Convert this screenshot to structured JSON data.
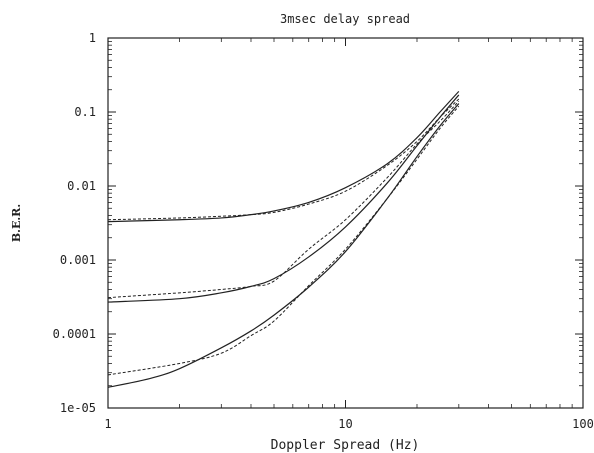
{
  "chart_data": {
    "type": "line",
    "title": "3msec delay spread",
    "xlabel": "Doppler Spread (Hz)",
    "ylabel": "B.E.R.",
    "xscale": "log",
    "yscale": "log",
    "xlim": [
      1,
      100
    ],
    "ylim": [
      1e-05,
      1
    ],
    "xticks": [
      1,
      10,
      100
    ],
    "xtick_labels": [
      "1",
      "10",
      "100"
    ],
    "yticks": [
      1,
      0.1,
      0.01,
      0.001,
      0.0001,
      1e-05
    ],
    "ytick_labels": [
      "1",
      "0.1",
      "0.01",
      "0.001",
      "0.0001",
      "1e-05"
    ],
    "grid": false,
    "legend": "none",
    "colors": {
      "line": "#222222",
      "axis": "#222222"
    },
    "series": [
      {
        "style": "solid",
        "x": [
          1,
          2,
          3,
          4,
          5,
          7,
          10,
          15,
          20,
          25,
          30
        ],
        "y": [
          0.0033,
          0.0035,
          0.0037,
          0.0041,
          0.0046,
          0.006,
          0.0095,
          0.02,
          0.045,
          0.1,
          0.19
        ]
      },
      {
        "style": "dashed",
        "x": [
          1,
          2,
          3,
          4,
          5,
          7,
          10,
          15,
          20,
          25,
          30
        ],
        "y": [
          0.0035,
          0.0037,
          0.0039,
          0.0041,
          0.0044,
          0.0057,
          0.0085,
          0.019,
          0.04,
          0.085,
          0.15
        ]
      },
      {
        "style": "solid",
        "x": [
          1,
          2,
          3,
          4,
          5,
          7,
          10,
          15,
          20,
          25,
          30
        ],
        "y": [
          0.00027,
          0.0003,
          0.00036,
          0.00044,
          0.00056,
          0.0011,
          0.0028,
          0.011,
          0.035,
          0.085,
          0.17
        ]
      },
      {
        "style": "dashed",
        "x": [
          1,
          2,
          3,
          4,
          5,
          7,
          10,
          15,
          20,
          25,
          30
        ],
        "y": [
          0.00031,
          0.00036,
          0.0004,
          0.00044,
          0.00052,
          0.0014,
          0.0035,
          0.013,
          0.037,
          0.075,
          0.14
        ]
      },
      {
        "style": "solid",
        "x": [
          1,
          1.5,
          2,
          3,
          4,
          5,
          7,
          10,
          15,
          20,
          25,
          30
        ],
        "y": [
          1.9e-05,
          2.5e-05,
          3.4e-05,
          6.5e-05,
          0.00011,
          0.00018,
          0.00043,
          0.0013,
          0.0068,
          0.025,
          0.065,
          0.13
        ]
      },
      {
        "style": "dashed",
        "x": [
          1,
          2,
          3,
          4,
          5,
          7,
          10,
          15,
          20,
          25,
          30
        ],
        "y": [
          2.8e-05,
          4e-05,
          5.5e-05,
          9.5e-05,
          0.00015,
          0.00045,
          0.0014,
          0.0068,
          0.023,
          0.06,
          0.12
        ]
      }
    ]
  }
}
